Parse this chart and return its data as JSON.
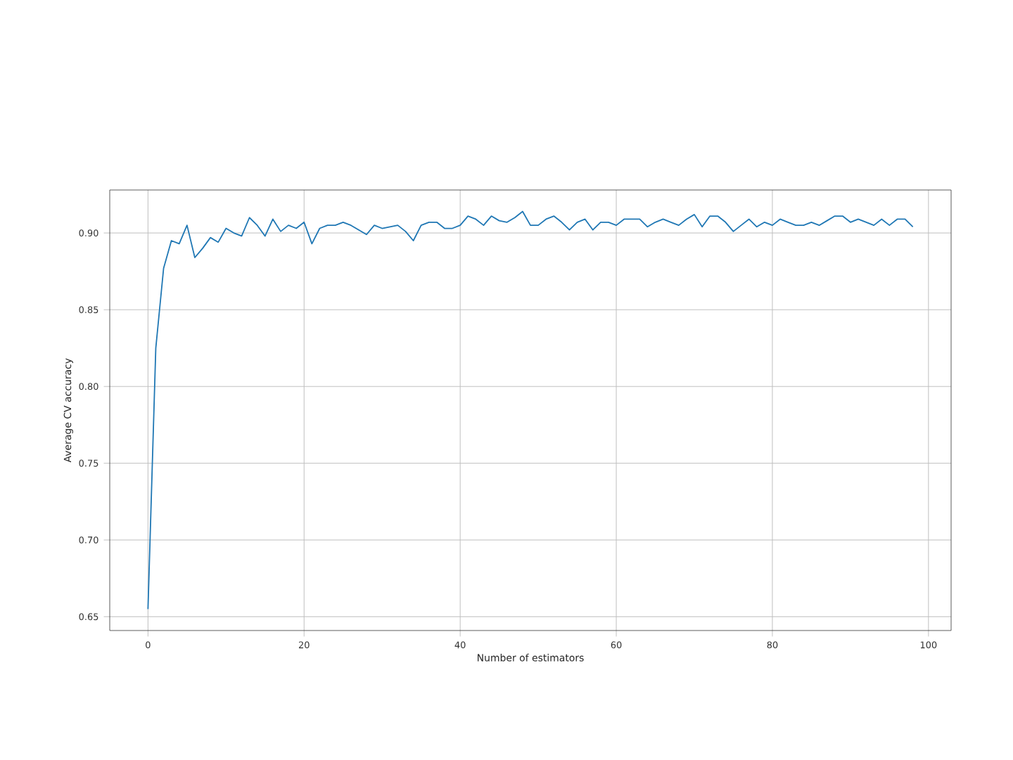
{
  "chart_data": {
    "type": "line",
    "xlabel": "Number of estimators",
    "ylabel": "Average CV accuracy",
    "x": [
      0,
      1,
      2,
      3,
      4,
      5,
      6,
      7,
      8,
      9,
      10,
      11,
      12,
      13,
      14,
      15,
      16,
      17,
      18,
      19,
      20,
      21,
      22,
      23,
      24,
      25,
      26,
      27,
      28,
      29,
      30,
      31,
      32,
      33,
      34,
      35,
      36,
      37,
      38,
      39,
      40,
      41,
      42,
      43,
      44,
      45,
      46,
      47,
      48,
      49,
      50,
      51,
      52,
      53,
      54,
      55,
      56,
      57,
      58,
      59,
      60,
      61,
      62,
      63,
      64,
      65,
      66,
      67,
      68,
      69,
      70,
      71,
      72,
      73,
      74,
      75,
      76,
      77,
      78,
      79,
      80,
      81,
      82,
      83,
      84,
      85,
      86,
      87,
      88,
      89,
      90,
      91,
      92,
      93,
      94,
      95,
      96,
      97,
      98
    ],
    "series": [
      {
        "color": "#1f77b4",
        "values": [
          0.655,
          0.825,
          0.877,
          0.895,
          0.893,
          0.905,
          0.884,
          0.89,
          0.897,
          0.894,
          0.903,
          0.9,
          0.898,
          0.91,
          0.905,
          0.898,
          0.909,
          0.901,
          0.905,
          0.903,
          0.907,
          0.893,
          0.903,
          0.905,
          0.905,
          0.907,
          0.905,
          0.902,
          0.899,
          0.905,
          0.903,
          0.904,
          0.905,
          0.901,
          0.895,
          0.905,
          0.907,
          0.907,
          0.903,
          0.903,
          0.905,
          0.911,
          0.909,
          0.905,
          0.911,
          0.908,
          0.907,
          0.91,
          0.914,
          0.905,
          0.905,
          0.909,
          0.911,
          0.907,
          0.902,
          0.907,
          0.909,
          0.902,
          0.907,
          0.907,
          0.905,
          0.909,
          0.909,
          0.909,
          0.904,
          0.907,
          0.909,
          0.907,
          0.905,
          0.909,
          0.912,
          0.904,
          0.911,
          0.911,
          0.907,
          0.901,
          0.905,
          0.909,
          0.904,
          0.907,
          0.905,
          0.909,
          0.907,
          0.905,
          0.905,
          0.907,
          0.905,
          0.908,
          0.911,
          0.911,
          0.907,
          0.909,
          0.907,
          0.905,
          0.909,
          0.905,
          0.909,
          0.909,
          0.904
        ]
      }
    ],
    "xlim": [
      -4.9,
      102.9
    ],
    "ylim": [
      0.641,
      0.928
    ],
    "xticks": [
      0,
      20,
      40,
      60,
      80,
      100
    ],
    "yticks": [
      {
        "value": 0.65,
        "label": "0.65"
      },
      {
        "value": 0.7,
        "label": "0.70"
      },
      {
        "value": 0.75,
        "label": "0.75"
      },
      {
        "value": 0.8,
        "label": "0.80"
      },
      {
        "value": 0.85,
        "label": "0.85"
      },
      {
        "value": 0.9,
        "label": "0.90"
      }
    ],
    "grid": true
  }
}
